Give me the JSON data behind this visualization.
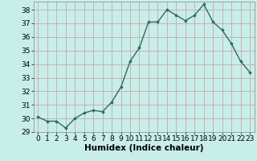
{
  "x": [
    0,
    1,
    2,
    3,
    4,
    5,
    6,
    7,
    8,
    9,
    10,
    11,
    12,
    13,
    14,
    15,
    16,
    17,
    18,
    19,
    20,
    21,
    22,
    23
  ],
  "y": [
    30.1,
    29.8,
    29.8,
    29.3,
    30.0,
    30.4,
    30.6,
    30.5,
    31.2,
    32.3,
    34.2,
    35.2,
    37.1,
    37.1,
    38.0,
    37.6,
    37.2,
    37.6,
    38.4,
    37.1,
    36.5,
    35.5,
    34.2,
    33.4
  ],
  "line_color": "#2d6b5e",
  "marker": "D",
  "markersize": 1.8,
  "linewidth": 1.0,
  "bg_color": "#c8eeea",
  "grid_color": "#c8a8a8",
  "xlabel": "Humidex (Indice chaleur)",
  "xlabel_fontsize": 7.5,
  "ylim": [
    29,
    38.6
  ],
  "xlim": [
    -0.5,
    23.5
  ],
  "yticks": [
    29,
    30,
    31,
    32,
    33,
    34,
    35,
    36,
    37,
    38
  ],
  "xtick_labels": [
    "0",
    "1",
    "2",
    "3",
    "4",
    "5",
    "6",
    "7",
    "8",
    "9",
    "10",
    "11",
    "12",
    "13",
    "14",
    "15",
    "16",
    "17",
    "18",
    "19",
    "20",
    "21",
    "22",
    "23"
  ],
  "tick_fontsize": 6.5
}
